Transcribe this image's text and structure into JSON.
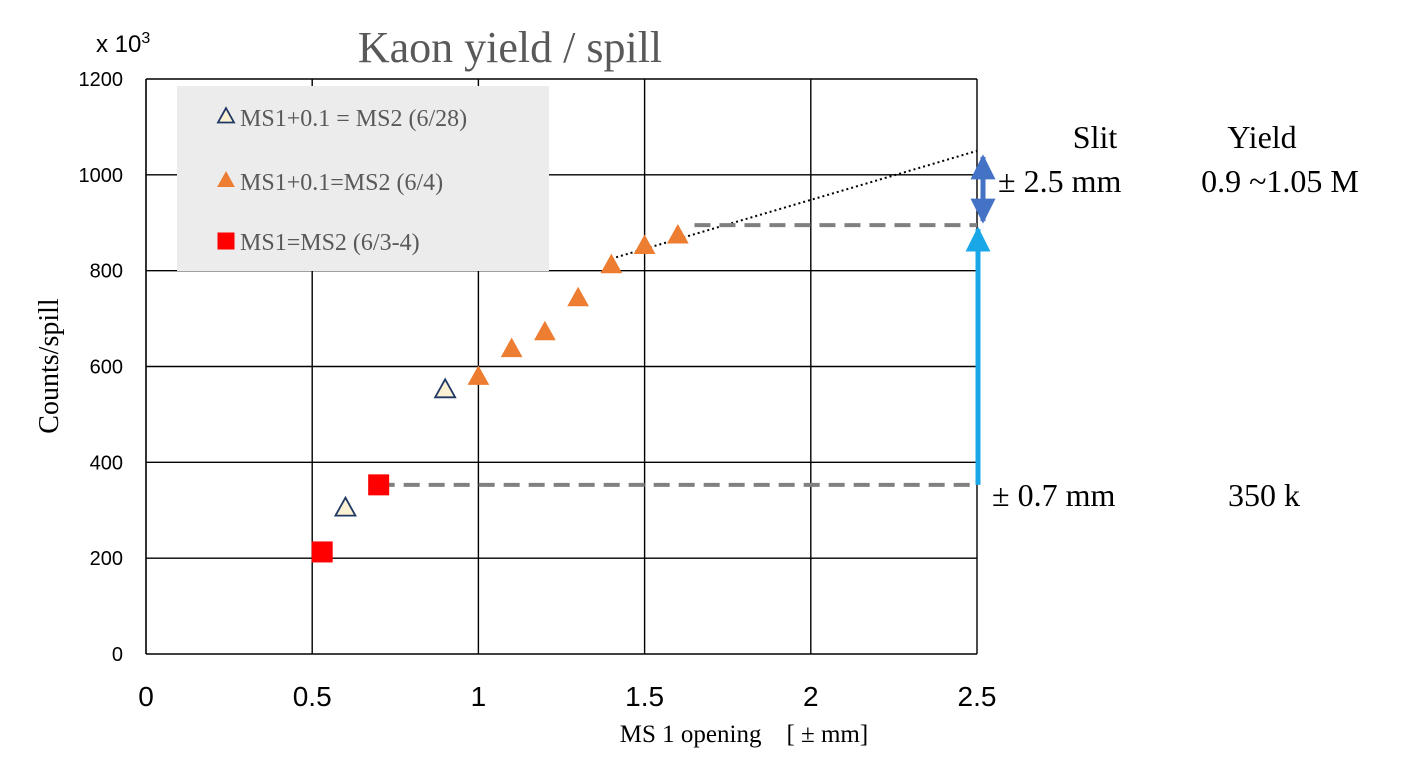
{
  "chart_data": {
    "type": "scatter",
    "title": "Kaon yield / spill",
    "xlabel": "MS 1  opening　[ ± mm]",
    "ylabel": "Counts/spill",
    "multiplier": "x 10",
    "multiplier_exp": "3",
    "xlim": [
      0,
      2.5
    ],
    "ylim": [
      0,
      1200
    ],
    "xticks": [
      "0",
      "0.5",
      "1",
      "1.5",
      "2",
      "2.5"
    ],
    "xtick_values": [
      0,
      0.5,
      1,
      1.5,
      2,
      2.5
    ],
    "yticks": [
      "0",
      "200",
      "400",
      "600",
      "800",
      "1000",
      "1200"
    ],
    "ytick_values": [
      0,
      200,
      400,
      600,
      800,
      1000,
      1200
    ],
    "grid": true,
    "legend_position": "top-left",
    "series": [
      {
        "name": "MS1+0.1 = MS2 (6/28)",
        "marker": "triangle-open",
        "fill": "#fdf1d3",
        "stroke": "#1f3864",
        "x": [
          0.6,
          0.9
        ],
        "y": [
          303,
          550
        ]
      },
      {
        "name": "MS1+0.1=MS2 (6/4)",
        "marker": "triangle",
        "fill": "#ed7d31",
        "stroke": "#ed7d31",
        "x": [
          1.0,
          1.1,
          1.2,
          1.3,
          1.4,
          1.5,
          1.6
        ],
        "y": [
          577,
          635,
          670,
          741,
          810,
          850,
          872
        ]
      },
      {
        "name": "MS1=MS2 (6/3-4)",
        "marker": "square",
        "fill": "#ff0000",
        "stroke": "#ff0000",
        "x": [
          0.53,
          0.7
        ],
        "y": [
          213,
          353
        ]
      }
    ],
    "annotations": {
      "trend_line": {
        "x": [
          1.4,
          2.5
        ],
        "y": [
          825,
          1050
        ],
        "color": "#000000"
      },
      "dashed_high": {
        "x": [
          1.65,
          2.5
        ],
        "y": [
          895,
          895
        ],
        "color": "#808080"
      },
      "dashed_low": {
        "x": [
          0.7,
          2.5
        ],
        "y": [
          353,
          353
        ],
        "color": "#808080"
      },
      "double_arrow": {
        "x": 2.5,
        "y": [
          1050,
          895
        ],
        "color": "#4472c4"
      },
      "up_arrow": {
        "x": 2.5,
        "y": [
          353,
          895
        ],
        "color": "#1aa7e8"
      },
      "table": {
        "header_slit": "Slit",
        "header_yield": "Yield",
        "row1_slit": "± 2.5 mm",
        "row1_yield": "0.9 ~1.05 M",
        "row2_slit": "± 0.7 mm",
        "row2_yield": "350 k"
      }
    }
  }
}
